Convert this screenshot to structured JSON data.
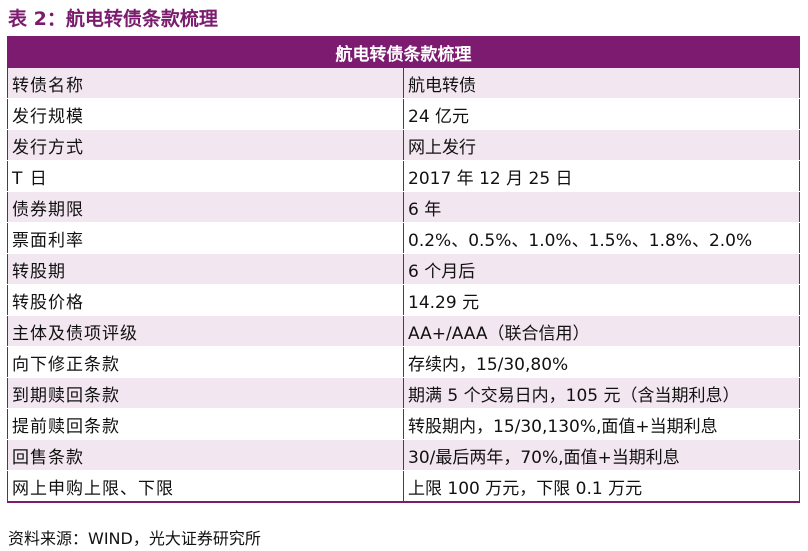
{
  "title": "表 2：航电转债条款梳理",
  "table": {
    "header": "航电转债条款梳理",
    "rows": [
      {
        "label": "转债名称",
        "value": "航电转债"
      },
      {
        "label": "发行规模",
        "value": "24 亿元"
      },
      {
        "label": "发行方式",
        "value": "网上发行"
      },
      {
        "label": "T 日",
        "value": "2017 年 12 月 25 日"
      },
      {
        "label": "债券期限",
        "value": "6 年"
      },
      {
        "label": "票面利率",
        "value": "0.2%、0.5%、1.0%、1.5%、1.8%、2.0%"
      },
      {
        "label": "转股期",
        "value": "6 个月后"
      },
      {
        "label": "转股价格",
        "value": "14.29 元"
      },
      {
        "label": "主体及债项评级",
        "value": "AA+/AAA（联合信用）"
      },
      {
        "label": "向下修正条款",
        "value": "存续内，15/30,80%"
      },
      {
        "label": "到期赎回条款",
        "value": "期满 5 个交易日内，105 元（含当期利息）"
      },
      {
        "label": "提前赎回条款",
        "value": "转股期内，15/30,130%,面值+当期利息"
      },
      {
        "label": "回售条款",
        "value": "30/最后两年，70%,面值+当期利息"
      },
      {
        "label": "网上申购上限、下限",
        "value": "上限 100 万元，下限 0.1 万元"
      }
    ]
  },
  "source": "资料来源：WIND，光大证券研究所",
  "colors": {
    "accent": "#7c1b70",
    "title": "#7a1b6e",
    "row_stripe": "#f2e6f0"
  }
}
